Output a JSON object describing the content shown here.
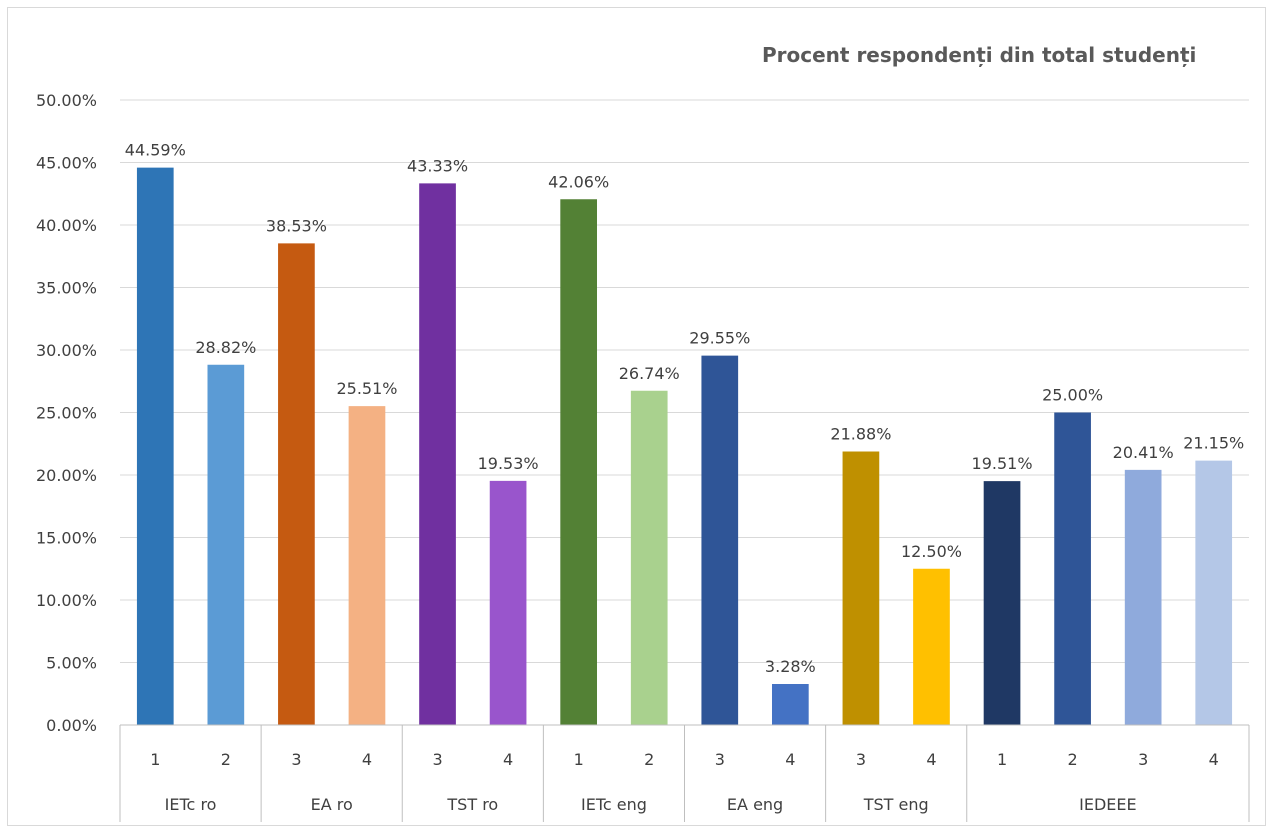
{
  "chart_data": {
    "type": "bar",
    "title": "Procent respondenți din total studenți",
    "xlabel": "",
    "ylabel": "",
    "ylim": [
      0,
      0.5
    ],
    "yticks": [
      "0.00%",
      "5.00%",
      "10.00%",
      "15.00%",
      "20.00%",
      "25.00%",
      "30.00%",
      "35.00%",
      "40.00%",
      "45.00%",
      "50.00%"
    ],
    "grid": true,
    "legend": "none",
    "groups": [
      {
        "name": "IETc ro",
        "bars": [
          {
            "year": "1",
            "value": 0.4459,
            "label": "44.59%",
            "color": "#2E75B6"
          },
          {
            "year": "2",
            "value": 0.2882,
            "label": "28.82%",
            "color": "#5B9BD5"
          }
        ]
      },
      {
        "name": "EA ro",
        "bars": [
          {
            "year": "3",
            "value": 0.3853,
            "label": "38.53%",
            "color": "#C55A11"
          },
          {
            "year": "4",
            "value": 0.2551,
            "label": "25.51%",
            "color": "#F4B183"
          }
        ]
      },
      {
        "name": "TST ro",
        "bars": [
          {
            "year": "3",
            "value": 0.4333,
            "label": "43.33%",
            "color": "#7030A0"
          },
          {
            "year": "4",
            "value": 0.1953,
            "label": "19.53%",
            "color": "#9955CC"
          }
        ]
      },
      {
        "name": "IETc eng",
        "bars": [
          {
            "year": "1",
            "value": 0.4206,
            "label": "42.06%",
            "color": "#538135"
          },
          {
            "year": "2",
            "value": 0.2674,
            "label": "26.74%",
            "color": "#A9D18E"
          }
        ]
      },
      {
        "name": "EA eng",
        "bars": [
          {
            "year": "3",
            "value": 0.2955,
            "label": "29.55%",
            "color": "#2F5597"
          },
          {
            "year": "4",
            "value": 0.0328,
            "label": "3.28%",
            "color": "#4472C4"
          }
        ]
      },
      {
        "name": "TST eng",
        "bars": [
          {
            "year": "3",
            "value": 0.2188,
            "label": "21.88%",
            "color": "#BF9000"
          },
          {
            "year": "4",
            "value": 0.125,
            "label": "12.50%",
            "color": "#FFC000"
          }
        ]
      },
      {
        "name": "IEDEEE",
        "bars": [
          {
            "year": "1",
            "value": 0.1951,
            "label": "19.51%",
            "color": "#1F3864"
          },
          {
            "year": "2",
            "value": 0.25,
            "label": "25.00%",
            "color": "#2F5597"
          },
          {
            "year": "3",
            "value": 0.2041,
            "label": "20.41%",
            "color": "#8FAADC"
          },
          {
            "year": "4",
            "value": 0.2115,
            "label": "21.15%",
            "color": "#B4C7E7"
          }
        ]
      }
    ],
    "colors": {
      "gridline": "#D9D9D9",
      "axis": "#BFBFBF",
      "text": "#404040",
      "title": "#595959"
    }
  }
}
